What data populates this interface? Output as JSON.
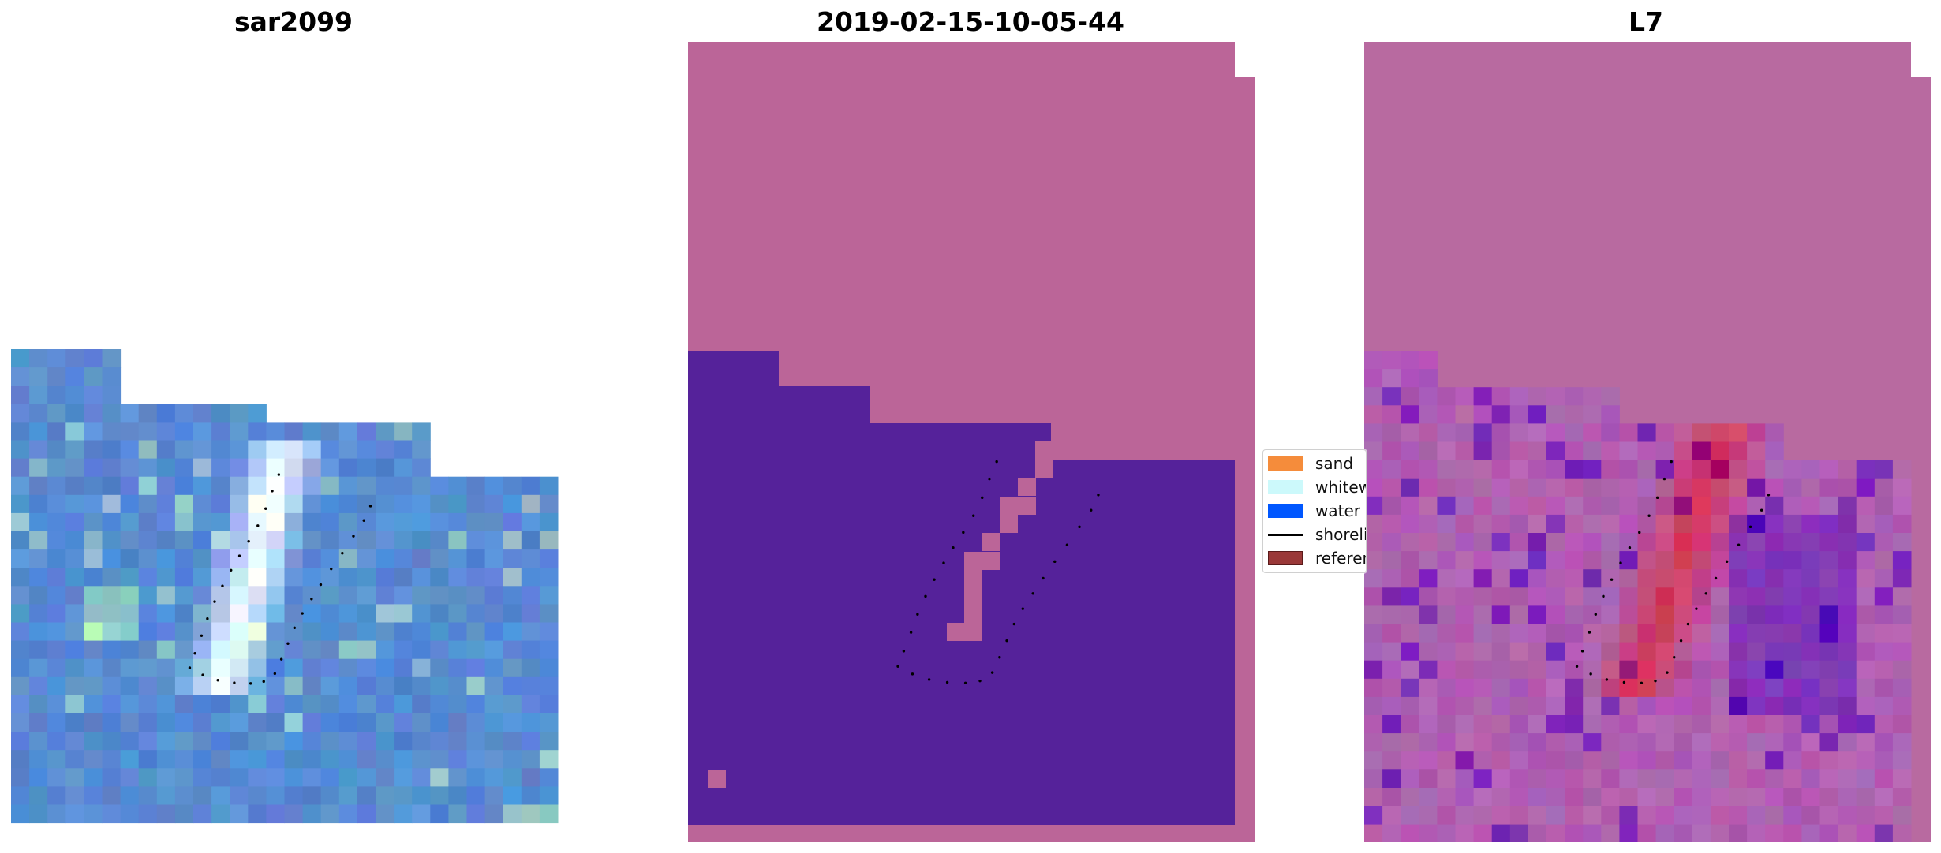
{
  "panels": [
    {
      "title": "sar2099"
    },
    {
      "title": "2019-02-15-10-05-44"
    },
    {
      "title": "L7"
    }
  ],
  "legend": {
    "items": [
      {
        "label": "sand",
        "color": "#f58c3b",
        "kind": "patch"
      },
      {
        "label": "whitewater",
        "color": "#ccf9fb",
        "kind": "patch"
      },
      {
        "label": "water",
        "color": "#0057ff",
        "kind": "patch"
      },
      {
        "label": "shoreline",
        "color": "#000000",
        "kind": "line"
      },
      {
        "label": "reference",
        "color": "#9a3838",
        "kind": "patch"
      }
    ]
  },
  "colors": {
    "classified_water": "#55229a",
    "classified_other": "#bb6598",
    "sar_base": "#4a80cc",
    "l7_base": "#b86aa0",
    "l7_hot": "#cc2255",
    "shoreline_dots": "#000000"
  }
}
